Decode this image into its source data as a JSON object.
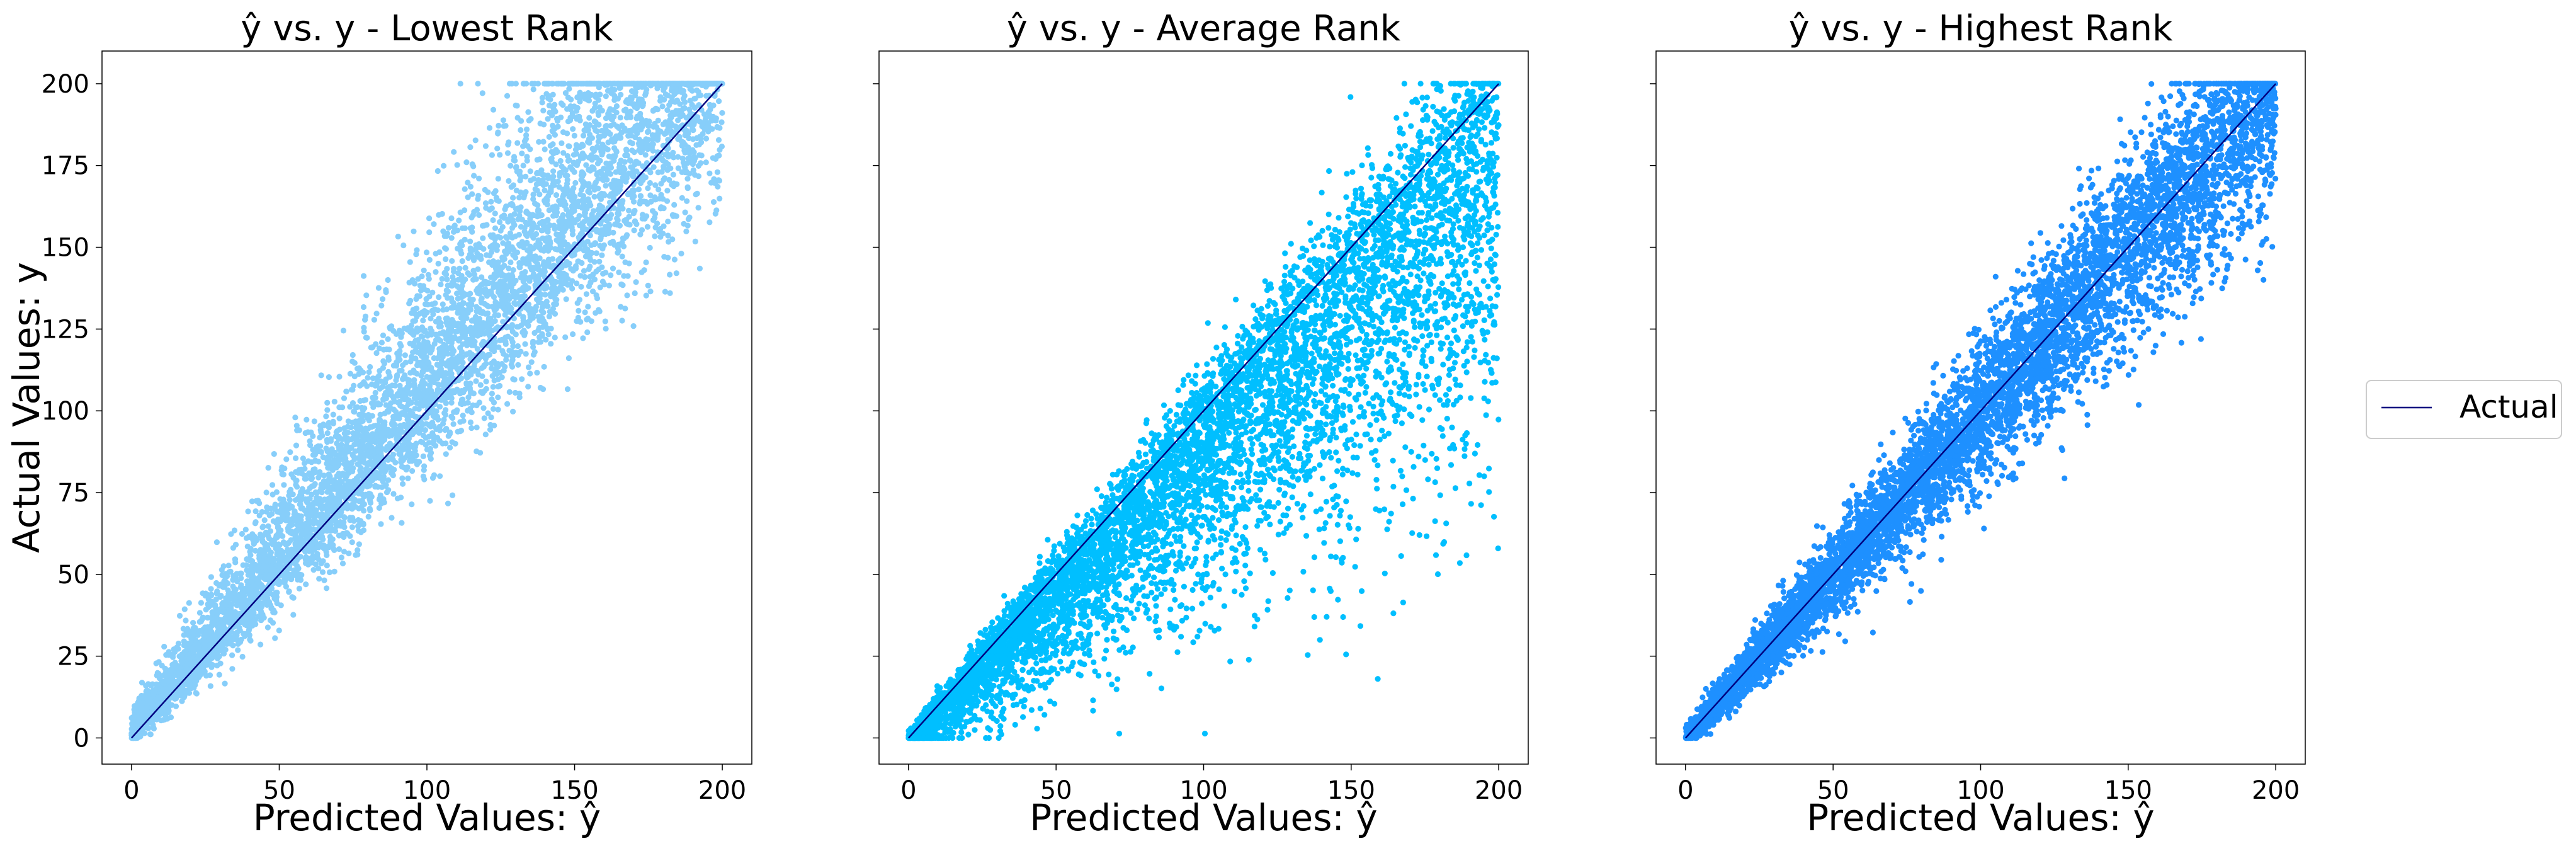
{
  "chart_data": [
    {
      "type": "scatter",
      "title": "ŷ vs. y - Lowest Rank",
      "xlabel": "Predicted Values: ŷ",
      "ylabel": "Actual Values: y",
      "xlim": [
        -10,
        210
      ],
      "ylim": [
        -8,
        210
      ],
      "xticks": [
        0,
        50,
        100,
        150,
        200
      ],
      "yticks": [
        0,
        25,
        50,
        75,
        100,
        125,
        150,
        175,
        200
      ],
      "grid": false,
      "point_color": "#87cefa",
      "scatter_description": "approx. 20000 points clustered around the diagonal; actual values tend to exceed predictions (points mostly above the line), capped at 200",
      "series": [
        {
          "name": "Actual",
          "kind": "line",
          "color": "#000080",
          "x": [
            0,
            200
          ],
          "y": [
            0,
            200
          ]
        }
      ]
    },
    {
      "type": "scatter",
      "title": "ŷ vs. y - Average Rank",
      "xlabel": "Predicted Values: ŷ",
      "ylabel": "",
      "xlim": [
        -10,
        210
      ],
      "ylim": [
        -8,
        210
      ],
      "xticks": [
        0,
        50,
        100,
        150,
        200
      ],
      "yticks": [
        0,
        25,
        50,
        75,
        100,
        125,
        150,
        175,
        200
      ],
      "grid": false,
      "point_color": "#00bfff",
      "scatter_description": "approx. 20000 points; predictions tend to exceed actual values (points mostly below the line), capped at 200",
      "series": [
        {
          "name": "Actual",
          "kind": "line",
          "color": "#000080",
          "x": [
            0,
            200
          ],
          "y": [
            0,
            200
          ]
        }
      ]
    },
    {
      "type": "scatter",
      "title": "ŷ vs. y - Highest Rank",
      "xlabel": "Predicted Values: ŷ",
      "ylabel": "",
      "xlim": [
        -10,
        210
      ],
      "ylim": [
        -8,
        210
      ],
      "xticks": [
        0,
        50,
        100,
        150,
        200
      ],
      "yticks": [
        0,
        25,
        50,
        75,
        100,
        125,
        150,
        175,
        200
      ],
      "grid": false,
      "point_color": "#1e90ff",
      "scatter_description": "approx. 20000 points tightly clustered around the diagonal, capped at 200",
      "series": [
        {
          "name": "Actual",
          "kind": "line",
          "color": "#000080",
          "x": [
            0,
            200
          ],
          "y": [
            0,
            200
          ]
        }
      ]
    }
  ],
  "legend": {
    "placement": "right",
    "entries": [
      {
        "label": "Actual",
        "color": "#000080"
      }
    ]
  }
}
